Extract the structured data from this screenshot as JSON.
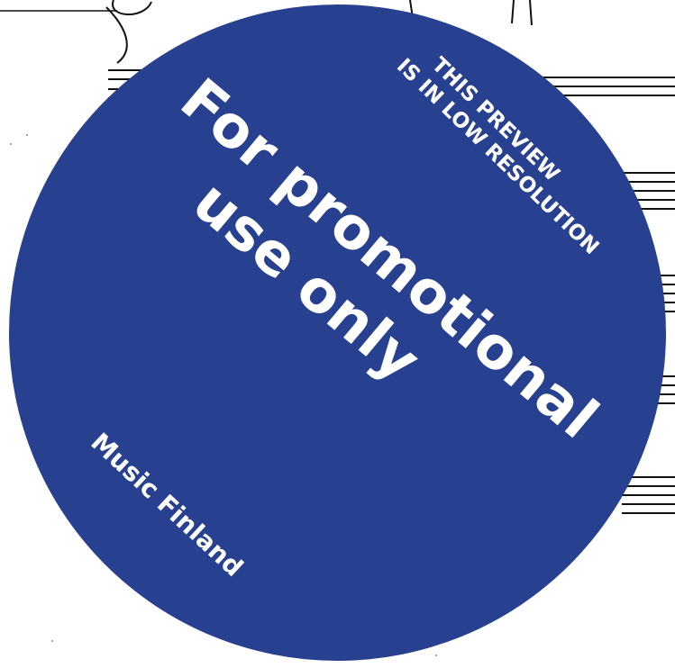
{
  "stamp": {
    "headline_line1": "For promotional",
    "headline_line2": "use only",
    "preview_line1": "THIS PREVIEW",
    "preview_line2": "IS IN LOW RESOLUTION",
    "brand": "Music Finland",
    "color": "#27408f",
    "text_color": "#ffffff"
  }
}
